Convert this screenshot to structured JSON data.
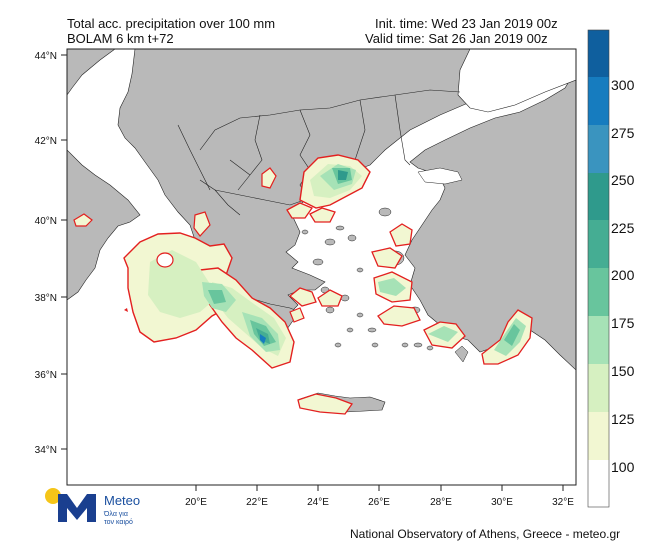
{
  "header": {
    "title_line1": "Total acc. precipitation over 100 mm",
    "title_line2": "BOLAM 6 km t+72",
    "init_time": "Init. time: Wed 23 Jan 2019 00z",
    "valid_time": "Valid time: Sat 26 Jan 2019 00z"
  },
  "map": {
    "lat_labels": [
      "44°N",
      "42°N",
      "40°N",
      "38°N",
      "36°N",
      "34°N"
    ],
    "lon_labels": [
      "20°E",
      "22°E",
      "24°E",
      "26°E",
      "28°E",
      "30°E",
      "32°E"
    ],
    "land_color": "#b9b9b9",
    "sea_color": "#ffffff",
    "threshold_contour_color": "#e32020"
  },
  "colorbar": {
    "levels": [
      "300",
      "275",
      "250",
      "225",
      "200",
      "175",
      "150",
      "125",
      "100"
    ],
    "colors": [
      "#ffffff",
      "#f2f7d2",
      "#d6f0c1",
      "#a6e2b6",
      "#68c59d",
      "#45ad93",
      "#2f9a8c",
      "#3a94bf",
      "#167cbf",
      "#0f5f9e"
    ]
  },
  "logo": {
    "brand": "Meteo",
    "tagline_line1": "Όλα για",
    "tagline_line2": "τον καιρό"
  },
  "footer": {
    "credit": "National Observatory of Athens, Greece - meteo.gr"
  }
}
